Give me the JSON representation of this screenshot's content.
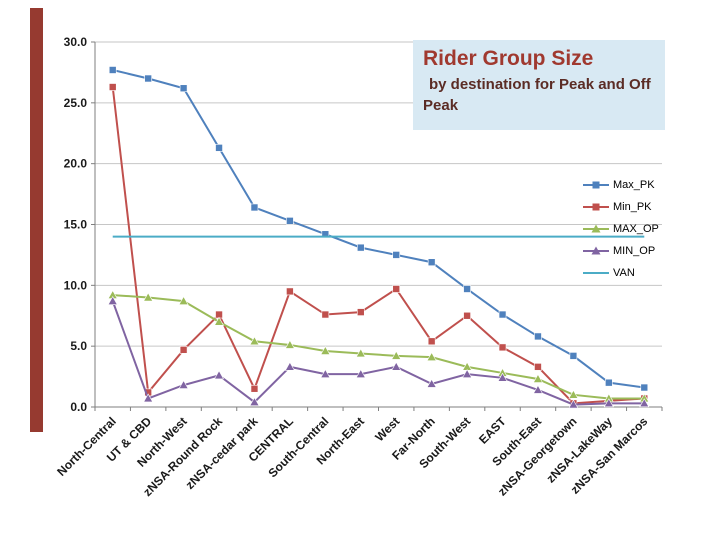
{
  "slide": {
    "title": "Rider Group Size",
    "subtitle": "by destination for Peak and Off Peak",
    "accent_bar_color": "#963a30",
    "title_box_bg": "#d8e9f3",
    "title_color": "#a0392f"
  },
  "chart_data": {
    "type": "line",
    "title": "Rider Group Size by destination for Peak and Off Peak",
    "categories": [
      "North-Central",
      "UT & CBD",
      "North-West",
      "zNSA-Round Rock",
      "zNSA-cedar park",
      "CENTRAL",
      "South-Central",
      "North-East",
      "West",
      "Far-North",
      "South-West",
      "EAST",
      "South-East",
      "zNSA-Georgetown",
      "zNSA-LakeWay",
      "zNSA-San Marcos"
    ],
    "series": [
      {
        "name": "Max_PK",
        "color": "#4F81BD",
        "marker": "square",
        "values": [
          27.7,
          27.0,
          26.2,
          21.3,
          16.4,
          15.3,
          14.2,
          13.1,
          12.5,
          11.9,
          9.7,
          7.6,
          5.8,
          4.2,
          2.0,
          1.6
        ]
      },
      {
        "name": "Min_PK",
        "color": "#C0504D",
        "marker": "square",
        "values": [
          26.3,
          1.2,
          4.7,
          7.6,
          1.5,
          9.5,
          7.6,
          7.8,
          9.7,
          5.4,
          7.5,
          4.9,
          3.3,
          0.3,
          0.5,
          0.7
        ]
      },
      {
        "name": "MAX_OP",
        "color": "#9BBB59",
        "marker": "triangle",
        "values": [
          9.2,
          9.0,
          8.7,
          7.0,
          5.4,
          5.1,
          4.6,
          4.4,
          4.2,
          4.1,
          3.3,
          2.8,
          2.3,
          1.0,
          0.7,
          0.7
        ]
      },
      {
        "name": "MIN_OP",
        "color": "#8064A2",
        "marker": "triangle",
        "values": [
          8.7,
          0.7,
          1.8,
          2.6,
          0.4,
          3.3,
          2.7,
          2.7,
          3.3,
          1.9,
          2.7,
          2.4,
          1.4,
          0.2,
          0.3,
          0.3
        ]
      },
      {
        "name": "VAN",
        "color": "#4BACC6",
        "marker": "none",
        "values": [
          14.0,
          14.0,
          14.0,
          14.0,
          14.0,
          14.0,
          14.0,
          14.0,
          14.0,
          14.0,
          14.0,
          14.0,
          14.0,
          14.0,
          14.0,
          14.0
        ]
      }
    ],
    "ylim": [
      0,
      30
    ],
    "yticks": [
      0,
      5,
      10,
      15,
      20,
      25,
      30
    ],
    "ytick_labels": [
      "0.0",
      "5.0",
      "10.0",
      "15.0",
      "20.0",
      "25.0",
      "30.0"
    ],
    "grid": "horizontal",
    "legend_position": "right"
  }
}
